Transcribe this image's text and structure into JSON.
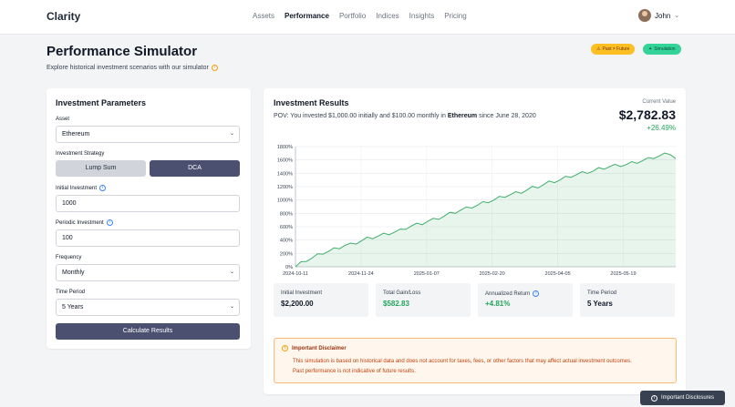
{
  "header": {
    "brand": "Clarity",
    "nav": [
      "Assets",
      "Performance",
      "Portfolio",
      "Indices",
      "Insights",
      "Pricing"
    ],
    "active_nav": "Performance",
    "user_name": "John"
  },
  "page": {
    "title": "Performance Simulator",
    "subtitle": "Explore historical investment scenarios with our simulator",
    "badges": {
      "past": "Past ≠ Future",
      "sim": "Simulation"
    }
  },
  "params": {
    "title": "Investment Parameters",
    "asset_label": "Asset",
    "asset_value": "Ethereum",
    "strategy_label": "Investment Strategy",
    "strategy_lump": "Lump Sum",
    "strategy_dca": "DCA",
    "selected_strategy": "DCA",
    "initial_label": "Initial Investment",
    "initial_value": "1000",
    "periodic_label": "Periodic Investment",
    "periodic_value": "100",
    "frequency_label": "Frequency",
    "frequency_value": "Monthly",
    "period_label": "Time Period",
    "period_value": "5 Years",
    "calc_button": "Calculate Results"
  },
  "results": {
    "title": "Investment Results",
    "pov_prefix": "POV: You invested $1,000.00 initially and $100.00 monthly in ",
    "pov_asset": "Ethereum",
    "pov_suffix": " since June 28, 2020",
    "current_value_label": "Current Value",
    "current_value": "$2,782.83",
    "change": "+26.49%",
    "stats": [
      {
        "label": "Initial Investment",
        "value": "$2,200.00"
      },
      {
        "label": "Total Gain/Loss",
        "value": "$582.83"
      },
      {
        "label": "Annualized Return",
        "value": "+4.81%"
      },
      {
        "label": "Time Period",
        "value": "5 Years"
      }
    ],
    "disclaimer_title": "Important Disclaimer",
    "disclaimer_text_1": "This simulation is based on historical data and does not account for taxes, fees, or other factors that may affect actual investment outcomes.",
    "disclaimer_text_2": "Past performance is not indicative of future results."
  },
  "footer_button": "Important Disclosures",
  "colors": {
    "accent": "#4b5070",
    "positive": "#22a55a",
    "line": "#3fae6a"
  },
  "chart_data": {
    "type": "area",
    "x_ticks": [
      "2024-10-11",
      "2024-11-24",
      "2025-01-07",
      "2025-02-20",
      "2025-04-05",
      "2025-05-19"
    ],
    "y_ticks": [
      "0%",
      "200%",
      "400%",
      "600%",
      "800%",
      "1000%",
      "1200%",
      "1400%",
      "1600%",
      "1800%"
    ],
    "ylim": [
      0,
      1800
    ],
    "grid": true,
    "series": [
      {
        "values": [
          0,
          50,
          100,
          130,
          170,
          210,
          230,
          260,
          290,
          320,
          330,
          360,
          390,
          420,
          440,
          460,
          480,
          500,
          520,
          540,
          580,
          610,
          630,
          650,
          680,
          700,
          730,
          760,
          790,
          820,
          850,
          870,
          900,
          920,
          950,
          980,
          1000,
          1030,
          1060,
          1080,
          1100,
          1120,
          1150,
          1180,
          1200,
          1230,
          1260,
          1280,
          1300,
          1330,
          1360,
          1380,
          1400,
          1420,
          1430,
          1460,
          1480,
          1500,
          1510,
          1520,
          1530,
          1550,
          1570,
          1590,
          1610,
          1640,
          1660,
          1680,
          1700,
          1620
        ]
      }
    ]
  }
}
